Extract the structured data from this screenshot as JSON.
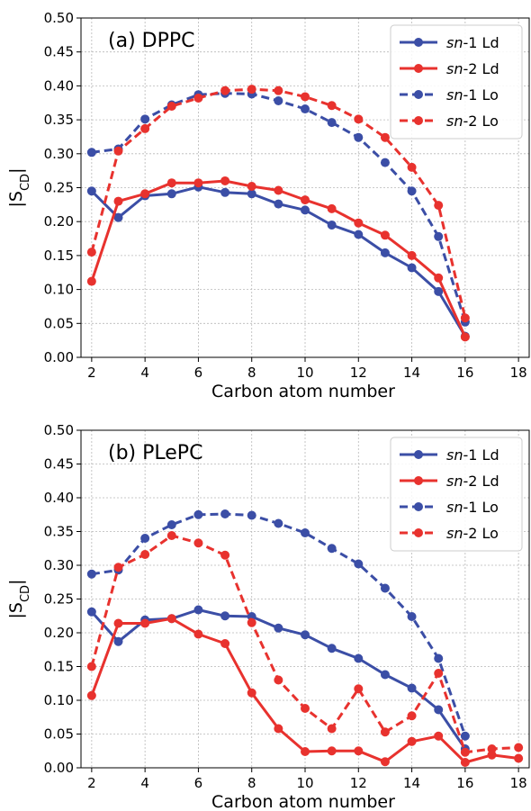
{
  "colors": {
    "blue": "#3b4ea6",
    "red": "#e8322e"
  },
  "chart_data": [
    {
      "type": "line",
      "title": "(a) DPPC",
      "xlabel": "Carbon atom number",
      "ylabel": "|S",
      "ylabel_sub": "CD",
      "xlim": [
        1.6,
        18.4
      ],
      "ylim": [
        0,
        0.5
      ],
      "xticks": [
        2,
        4,
        6,
        8,
        10,
        12,
        14,
        16,
        18
      ],
      "yticks": [
        "0.00",
        "0.05",
        "0.10",
        "0.15",
        "0.20",
        "0.25",
        "0.30",
        "0.35",
        "0.40",
        "0.45",
        "0.50"
      ],
      "grid": true,
      "legend_position": "top-right",
      "series": [
        {
          "name_italic": "sn",
          "name_rest": "-1 Ld",
          "color": "#3b4ea6",
          "dashed": false,
          "x": [
            2,
            3,
            4,
            5,
            6,
            7,
            8,
            9,
            10,
            11,
            12,
            13,
            14,
            15,
            16
          ],
          "values": [
            0.245,
            0.206,
            0.238,
            0.241,
            0.251,
            0.243,
            0.241,
            0.226,
            0.217,
            0.195,
            0.181,
            0.154,
            0.132,
            0.097,
            0.031
          ]
        },
        {
          "name_italic": "sn",
          "name_rest": "-2 Ld",
          "color": "#e8322e",
          "dashed": false,
          "x": [
            2,
            3,
            4,
            5,
            6,
            7,
            8,
            9,
            10,
            11,
            12,
            13,
            14,
            15,
            16
          ],
          "values": [
            0.112,
            0.23,
            0.241,
            0.257,
            0.257,
            0.26,
            0.252,
            0.246,
            0.232,
            0.219,
            0.198,
            0.18,
            0.15,
            0.117,
            0.03
          ]
        },
        {
          "name_italic": "sn",
          "name_rest": "-1 Lo",
          "color": "#3b4ea6",
          "dashed": true,
          "x": [
            2,
            3,
            4,
            5,
            6,
            7,
            8,
            9,
            10,
            11,
            12,
            13,
            14,
            15,
            16
          ],
          "values": [
            0.302,
            0.307,
            0.351,
            0.372,
            0.387,
            0.389,
            0.388,
            0.378,
            0.366,
            0.346,
            0.324,
            0.287,
            0.245,
            0.178,
            0.052
          ]
        },
        {
          "name_italic": "sn",
          "name_rest": "-2 Lo",
          "color": "#e8322e",
          "dashed": true,
          "x": [
            2,
            3,
            4,
            5,
            6,
            7,
            8,
            9,
            10,
            11,
            12,
            13,
            14,
            15,
            16
          ],
          "values": [
            0.155,
            0.304,
            0.337,
            0.37,
            0.382,
            0.393,
            0.395,
            0.393,
            0.384,
            0.371,
            0.351,
            0.324,
            0.28,
            0.224,
            0.058
          ]
        }
      ]
    },
    {
      "type": "line",
      "title": "(b) PLePC",
      "xlabel": "Carbon atom number",
      "ylabel": "|S",
      "ylabel_sub": "CD",
      "xlim": [
        1.6,
        18.4
      ],
      "ylim": [
        0,
        0.5
      ],
      "xticks": [
        2,
        4,
        6,
        8,
        10,
        12,
        14,
        16,
        18
      ],
      "yticks": [
        "0.00",
        "0.05",
        "0.10",
        "0.15",
        "0.20",
        "0.25",
        "0.30",
        "0.35",
        "0.40",
        "0.45",
        "0.50"
      ],
      "grid": true,
      "legend_position": "top-right",
      "series": [
        {
          "name_italic": "sn",
          "name_rest": "-1 Ld",
          "color": "#3b4ea6",
          "dashed": false,
          "x": [
            2,
            3,
            4,
            5,
            6,
            7,
            8,
            9,
            10,
            11,
            12,
            13,
            14,
            15,
            16
          ],
          "values": [
            0.231,
            0.187,
            0.219,
            0.221,
            0.234,
            0.225,
            0.224,
            0.207,
            0.197,
            0.177,
            0.162,
            0.138,
            0.118,
            0.086,
            0.028
          ]
        },
        {
          "name_italic": "sn",
          "name_rest": "-2 Ld",
          "color": "#e8322e",
          "dashed": false,
          "x": [
            2,
            3,
            4,
            5,
            6,
            7,
            8,
            9,
            10,
            11,
            12,
            13,
            14,
            15,
            16,
            17,
            18
          ],
          "values": [
            0.107,
            0.214,
            0.214,
            0.221,
            0.198,
            0.184,
            0.111,
            0.058,
            0.024,
            0.025,
            0.025,
            0.009,
            0.039,
            0.047,
            0.008,
            0.019,
            0.014
          ]
        },
        {
          "name_italic": "sn",
          "name_rest": "-1 Lo",
          "color": "#3b4ea6",
          "dashed": true,
          "x": [
            2,
            3,
            4,
            5,
            6,
            7,
            8,
            9,
            10,
            11,
            12,
            13,
            14,
            15,
            16
          ],
          "values": [
            0.287,
            0.293,
            0.34,
            0.36,
            0.375,
            0.376,
            0.374,
            0.362,
            0.348,
            0.325,
            0.302,
            0.266,
            0.224,
            0.162,
            0.047
          ]
        },
        {
          "name_italic": "sn",
          "name_rest": "-2 Lo",
          "color": "#e8322e",
          "dashed": true,
          "x": [
            2,
            3,
            4,
            5,
            6,
            7,
            8,
            9,
            10,
            11,
            12,
            13,
            14,
            15,
            16,
            17,
            18
          ],
          "values": [
            0.15,
            0.297,
            0.316,
            0.344,
            0.333,
            0.315,
            0.215,
            0.13,
            0.088,
            0.058,
            0.117,
            0.053,
            0.077,
            0.14,
            0.023,
            0.028,
            0.03
          ]
        }
      ]
    }
  ]
}
